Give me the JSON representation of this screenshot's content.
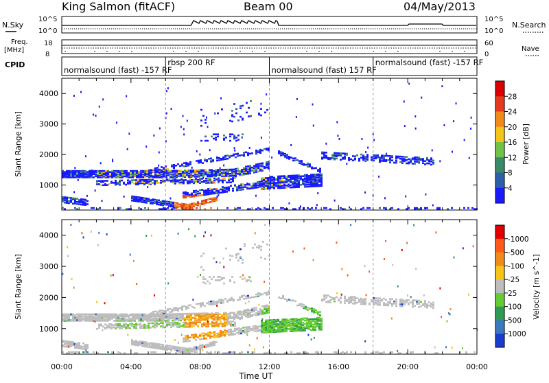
{
  "header": {
    "station": "King Salmon (fitACF)",
    "beam": "Beam 00",
    "date": "04/May/2013"
  },
  "noise_panel": {
    "left_label": "N.Sky",
    "right_label": "N.Search",
    "y_top": "10^5",
    "y_bottom": "10^0",
    "right_top": "10^5",
    "right_bottom": "10^0"
  },
  "freq_panel": {
    "left_label": "Freq.",
    "left_unit": "[MHz]",
    "right_label": "Nave",
    "y_top": "18",
    "y_bottom": "8",
    "right_top": "60",
    "right_bottom": "0"
  },
  "cpid": {
    "label": "CPID",
    "segments": [
      {
        "text": "normalsound (fast) -157 RF",
        "start_hour": 0.0
      },
      {
        "text": "rbsp 200 RF",
        "start_hour": 6.0
      },
      {
        "text": "normalsound (fast) 157 RF",
        "start_hour": 12.0
      },
      {
        "text": "normalsound (fast) -157 RF",
        "start_hour": 18.0
      }
    ]
  },
  "chart_data": [
    {
      "type": "heatmap",
      "name": "power",
      "ylabel": "Slant Range [km]",
      "y_ticks": [
        "1000",
        "2000",
        "3000",
        "4000"
      ],
      "ylim": [
        180,
        4500
      ],
      "colorbar_label": "Power [dB]",
      "colorbar_ticks": [
        "4",
        "8",
        "12",
        "16",
        "20",
        "24",
        "28"
      ],
      "colorbar_range": [
        0,
        30
      ],
      "colors": [
        "#1a1aff",
        "#2d5fa8",
        "#3a8a6a",
        "#72c24a",
        "#f4c518",
        "#f08a1c",
        "#e43a1e",
        "#d80000"
      ]
    },
    {
      "type": "heatmap",
      "name": "velocity",
      "ylabel": "Slant Range [km]",
      "y_ticks": [
        "1000",
        "2000",
        "3000",
        "4000"
      ],
      "ylim": [
        180,
        4500
      ],
      "colorbar_label": "Velocity [m s^-1]",
      "colorbar_ticks": [
        "1000",
        "500",
        "100",
        "25",
        "-25",
        "-100",
        "-500",
        "-1000"
      ],
      "colors": [
        "#1a3ccc",
        "#3a78c0",
        "#2f9a55",
        "#66cc33",
        "#bdbdbd",
        "#f5c518",
        "#f08a1c",
        "#ff5a1a",
        "#e00000"
      ]
    }
  ],
  "x_axis": {
    "label": "Time UT",
    "ticks": [
      "00:00",
      "04:00",
      "08:00",
      "12:00",
      "16:00",
      "20:00",
      "00:00"
    ],
    "range_hours": [
      0,
      24
    ]
  }
}
